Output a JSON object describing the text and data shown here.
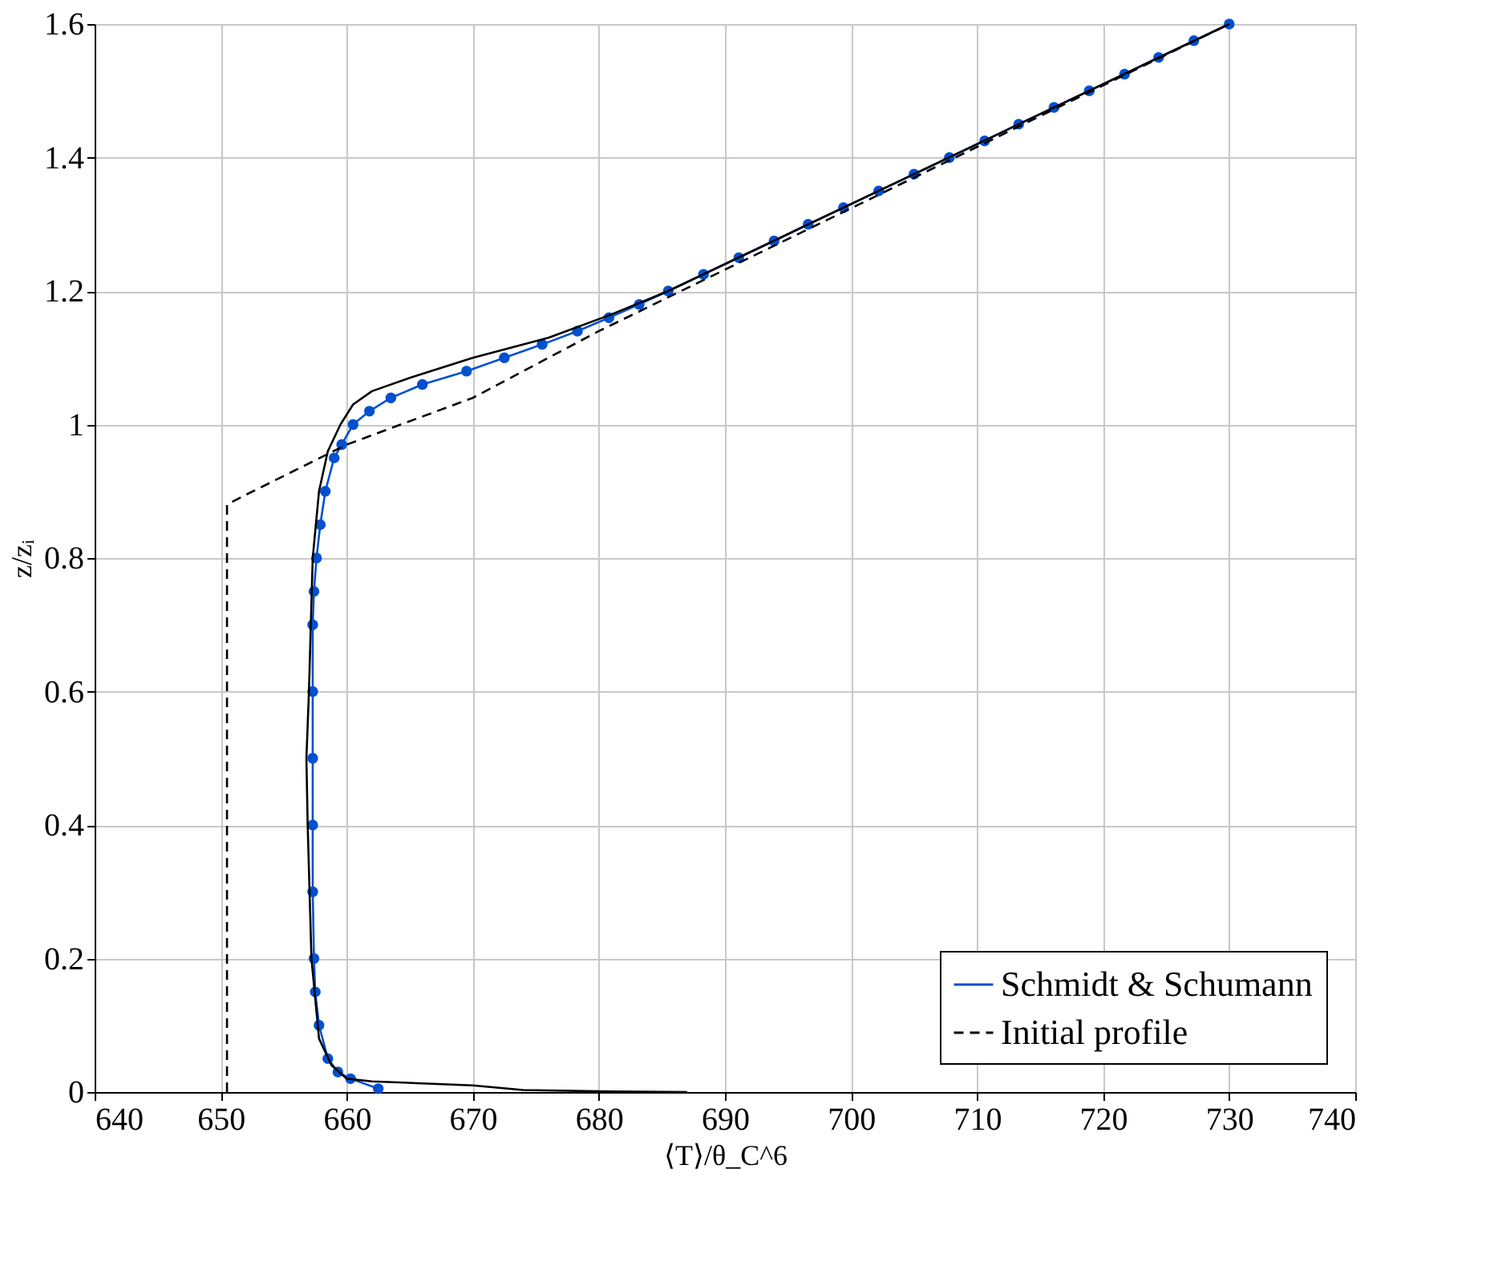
{
  "chart_data": {
    "type": "line",
    "xlabel": "⟨T⟩/θ_C^6",
    "ylabel": "z/zᵢ",
    "xlim": [
      640,
      740
    ],
    "ylim": [
      0,
      1.6
    ],
    "xticks": [
      640,
      650,
      660,
      670,
      680,
      690,
      700,
      710,
      720,
      730,
      740
    ],
    "yticks": [
      0,
      0.2,
      0.4,
      0.6,
      0.8,
      1,
      1.2,
      1.4,
      1.6
    ],
    "grid": true,
    "legend": "bottom right",
    "series": [
      {
        "name": "Schmidt & Schumann",
        "color": "#0050d0",
        "marker": "circle",
        "line_style": "solid",
        "x": [
          662.5,
          660.3,
          659.3,
          658.5,
          657.8,
          657.5,
          657.4,
          657.3,
          657.3,
          657.3,
          657.3,
          657.3,
          657.4,
          657.6,
          657.9,
          658.3,
          659.0,
          659.6,
          660.5,
          661.8,
          663.5,
          666.0,
          669.5,
          672.5,
          675.5,
          678.3,
          680.8,
          683.2,
          685.5,
          688.3,
          691.1,
          693.9,
          696.6,
          699.4,
          702.2,
          705.0,
          707.8,
          710.6,
          713.3,
          716.1,
          718.9,
          721.7,
          724.4,
          727.2,
          730.0
        ],
        "values": [
          0.005,
          0.02,
          0.03,
          0.05,
          0.1,
          0.15,
          0.2,
          0.3,
          0.4,
          0.5,
          0.6,
          0.7,
          0.75,
          0.8,
          0.85,
          0.9,
          0.95,
          0.97,
          1.0,
          1.02,
          1.04,
          1.06,
          1.08,
          1.1,
          1.12,
          1.14,
          1.16,
          1.18,
          1.2,
          1.225,
          1.25,
          1.275,
          1.3,
          1.325,
          1.35,
          1.375,
          1.4,
          1.425,
          1.45,
          1.475,
          1.5,
          1.525,
          1.55,
          1.575,
          1.6
        ]
      },
      {
        "color": "#000000",
        "marker": "none",
        "line_style": "solid",
        "x": [
          687,
          680,
          674,
          670,
          666,
          662,
          660,
          658.8,
          657.8,
          657.2,
          656.9,
          656.8,
          657.0,
          657.3,
          657.8,
          658.5,
          659.5,
          660.5,
          662,
          665,
          670,
          676,
          681,
          685.5,
          730
        ],
        "values": [
          0,
          0.001,
          0.003,
          0.01,
          0.013,
          0.016,
          0.02,
          0.04,
          0.08,
          0.2,
          0.4,
          0.5,
          0.6,
          0.8,
          0.9,
          0.96,
          1.0,
          1.03,
          1.05,
          1.07,
          1.1,
          1.13,
          1.165,
          1.2,
          1.6
        ]
      },
      {
        "name": "Initial profile",
        "color": "#000000",
        "marker": "none",
        "line_style": "dashed",
        "x": [
          650.5,
          650.5,
          651.5,
          660,
          670,
          680,
          730
        ],
        "values": [
          0,
          0.88,
          0.89,
          0.97,
          1.04,
          1.14,
          1.6
        ]
      }
    ]
  }
}
